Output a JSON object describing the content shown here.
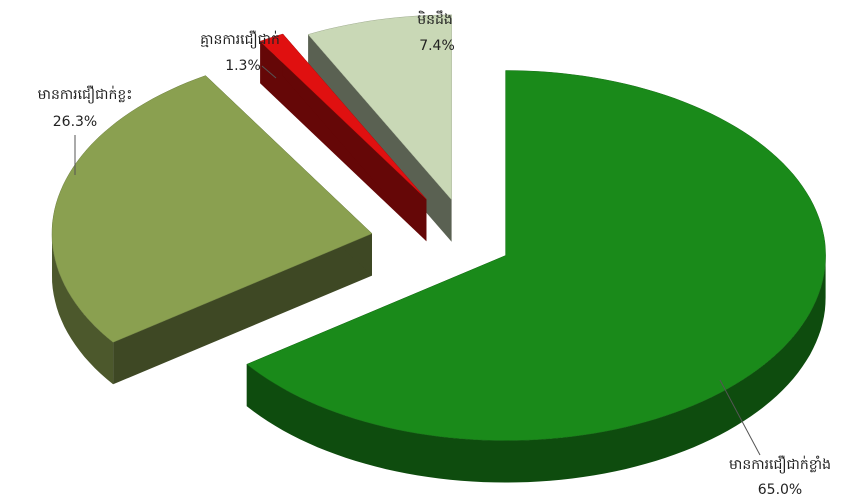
{
  "chart_data": {
    "type": "pie",
    "categories": [
      "មានការជឿជាក់ខ្លាំង",
      "មានការជឿជាក់ខ្លះ",
      "គ្មានការជឿជាក់",
      "មិនដឹង"
    ],
    "values": [
      65,
      26.3,
      1.3,
      7.4
    ],
    "value_labels": [
      "65.0%",
      "26.3%",
      "1.3%",
      "7.4%"
    ],
    "colors": [
      "#1a8a1a",
      "#8aa050",
      "#e01010",
      "#c9d8b6"
    ]
  }
}
